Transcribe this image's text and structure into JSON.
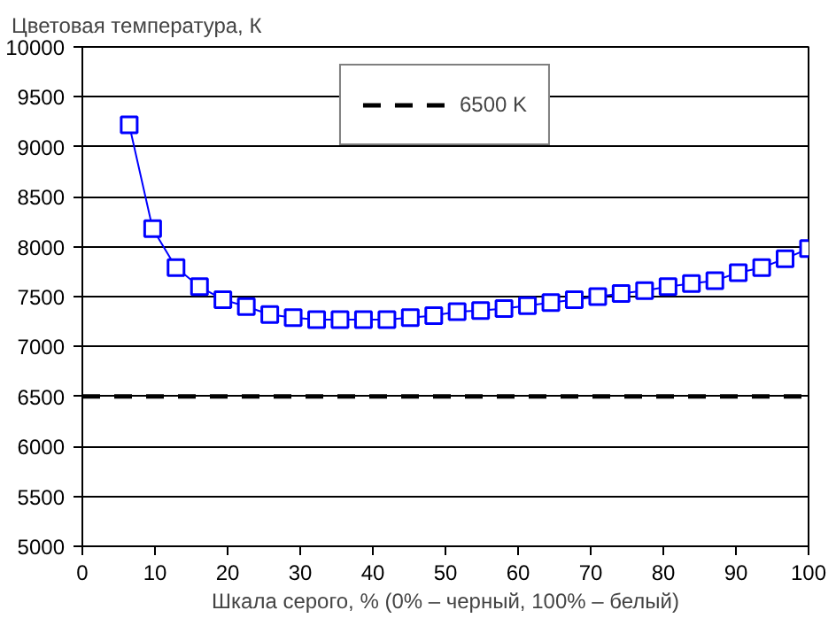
{
  "chart_data": {
    "type": "line",
    "xlabel": "Шкала серого, % (0% – черный, 100% – белый)",
    "ylabel": "Цветовая температура, К",
    "x": [
      6.45,
      9.68,
      12.9,
      16.13,
      19.35,
      22.58,
      25.81,
      29.03,
      32.26,
      35.48,
      38.71,
      41.94,
      45.16,
      48.39,
      51.61,
      54.84,
      58.06,
      61.29,
      64.52,
      67.74,
      70.97,
      74.19,
      77.42,
      80.65,
      83.87,
      87.1,
      90.32,
      93.55,
      96.77,
      100
    ],
    "series": [
      {
        "color": "#0000ff",
        "values": [
          9220,
          8180,
          7790,
          7600,
          7470,
          7400,
          7320,
          7290,
          7270,
          7270,
          7270,
          7270,
          7290,
          7310,
          7350,
          7360,
          7380,
          7410,
          7440,
          7470,
          7500,
          7530,
          7560,
          7600,
          7630,
          7660,
          7740,
          7790,
          7880,
          7980
        ]
      }
    ],
    "marker": "square",
    "line_style": "solid",
    "xlim": [
      0,
      100
    ],
    "xticks": [
      0,
      10,
      20,
      30,
      40,
      50,
      60,
      70,
      80,
      90,
      100
    ],
    "ylim": [
      5000,
      10000
    ],
    "yticks": [
      5000,
      5500,
      6000,
      6500,
      7000,
      7500,
      8000,
      8500,
      9000,
      9500,
      10000
    ],
    "grid": "y",
    "legend": "top",
    "ref_lines": [
      {
        "axis": "y",
        "value": 6500,
        "label": "6500 K",
        "color": "#000000",
        "line_style": "dashed"
      }
    ]
  }
}
